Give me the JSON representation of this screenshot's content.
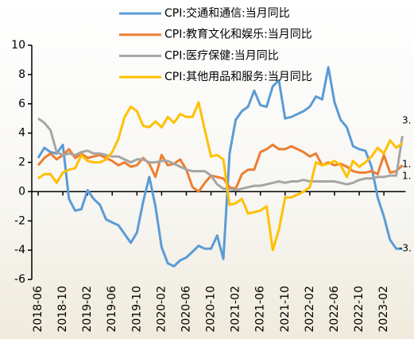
{
  "chart_data": {
    "type": "line",
    "categories": [
      "2018-06",
      null,
      null,
      null,
      "2018-10",
      null,
      null,
      null,
      "2019-02",
      null,
      null,
      null,
      "2019-06",
      null,
      null,
      null,
      "2019-10",
      null,
      null,
      null,
      "2020-02",
      null,
      null,
      null,
      "2020-06",
      null,
      null,
      null,
      "2020-10",
      null,
      null,
      null,
      "2021-02",
      null,
      null,
      null,
      "2021-06",
      null,
      null,
      null,
      "2021-10",
      null,
      null,
      null,
      "2022-02",
      null,
      null,
      null,
      "2022-06",
      null,
      null,
      null,
      "2022-10",
      null,
      null,
      null,
      "2023-02",
      null,
      null,
      null
    ],
    "series": [
      {
        "name": "CPI:交通和通信:当月同比",
        "color": "#5b9bd5",
        "values": [
          2.3,
          3.0,
          2.7,
          2.6,
          3.2,
          -0.5,
          -1.3,
          -1.2,
          0.1,
          -0.5,
          -0.9,
          -1.9,
          -2.1,
          -2.3,
          -2.9,
          -3.5,
          -2.8,
          -0.7,
          1.0,
          -1.0,
          -3.8,
          -4.9,
          -5.1,
          -4.7,
          -4.5,
          -4.1,
          -3.7,
          -3.9,
          -3.9,
          -3.0,
          -4.6,
          2.6,
          4.9,
          5.5,
          5.8,
          6.9,
          5.9,
          5.8,
          7.2,
          7.6,
          5.0,
          5.1,
          5.3,
          5.5,
          5.8,
          6.5,
          6.3,
          8.5,
          6.1,
          4.9,
          4.4,
          3.1,
          2.9,
          2.8,
          1.7,
          -0.4,
          -1.7,
          -3.3,
          -3.9,
          -3.9
        ]
      },
      {
        "name": "CPI:教育文化和娱乐:当月同比",
        "color": "#ed7d31",
        "values": [
          1.8,
          2.3,
          2.6,
          2.2,
          2.5,
          2.9,
          2.3,
          2.6,
          2.3,
          2.4,
          2.5,
          2.3,
          2.1,
          1.8,
          2.0,
          1.7,
          1.8,
          2.3,
          1.9,
          1.0,
          2.5,
          1.8,
          1.9,
          2.2,
          1.5,
          0.3,
          0.0,
          0.6,
          1.1,
          1.0,
          0.9,
          0.3,
          0.2,
          1.2,
          1.5,
          1.5,
          2.7,
          2.9,
          3.2,
          2.9,
          2.9,
          3.1,
          2.9,
          2.7,
          2.4,
          2.6,
          1.8,
          2.0,
          1.8,
          1.9,
          1.7,
          1.4,
          1.3,
          1.3,
          1.4,
          1.2,
          2.5,
          1.3,
          1.4,
          1.8
        ]
      },
      {
        "name": "CPI:医疗保健:当月同比",
        "color": "#a5a5a5",
        "values": [
          5.0,
          4.7,
          4.2,
          2.7,
          2.5,
          2.6,
          2.5,
          2.7,
          2.8,
          2.6,
          2.6,
          2.5,
          2.4,
          2.4,
          2.2,
          2.0,
          2.2,
          2.2,
          2.0,
          2.0,
          2.1,
          2.1,
          1.9,
          1.7,
          1.5,
          1.4,
          1.4,
          1.4,
          1.1,
          0.5,
          0.2,
          0.2,
          0.1,
          0.2,
          0.3,
          0.4,
          0.4,
          0.5,
          0.6,
          0.7,
          0.6,
          0.7,
          0.7,
          0.8,
          0.7,
          0.7,
          0.7,
          0.7,
          0.7,
          0.6,
          0.5,
          0.6,
          0.8,
          0.9,
          0.9,
          1.0,
          1.0,
          1.1,
          1.1,
          3.8
        ]
      },
      {
        "name": "CPI:其他用品和服务:当月同比",
        "color": "#ffc000",
        "values": [
          0.9,
          1.2,
          1.2,
          0.6,
          1.3,
          1.5,
          1.6,
          2.5,
          2.1,
          2.0,
          2.0,
          2.2,
          2.7,
          3.6,
          5.1,
          5.8,
          5.5,
          4.5,
          4.4,
          4.8,
          4.4,
          5.1,
          4.7,
          5.3,
          5.1,
          5.1,
          6.1,
          4.2,
          2.4,
          2.5,
          2.2,
          -0.9,
          -0.8,
          -0.5,
          -1.5,
          -1.4,
          -1.3,
          -1.0,
          -4.0,
          -2.6,
          -0.4,
          -0.4,
          -0.2,
          0.0,
          0.3,
          2.0,
          1.8,
          1.9,
          2.1,
          1.8,
          1.0,
          2.1,
          1.7,
          2.0,
          2.4,
          3.0,
          2.6,
          3.5,
          3.0,
          3.3
        ]
      }
    ],
    "ylim": [
      -6,
      10
    ],
    "yticks": [
      -6,
      -4,
      -2,
      0,
      2,
      4,
      6,
      8,
      10
    ],
    "annotations": [
      "3.",
      "1.",
      "1.",
      "-3."
    ]
  }
}
